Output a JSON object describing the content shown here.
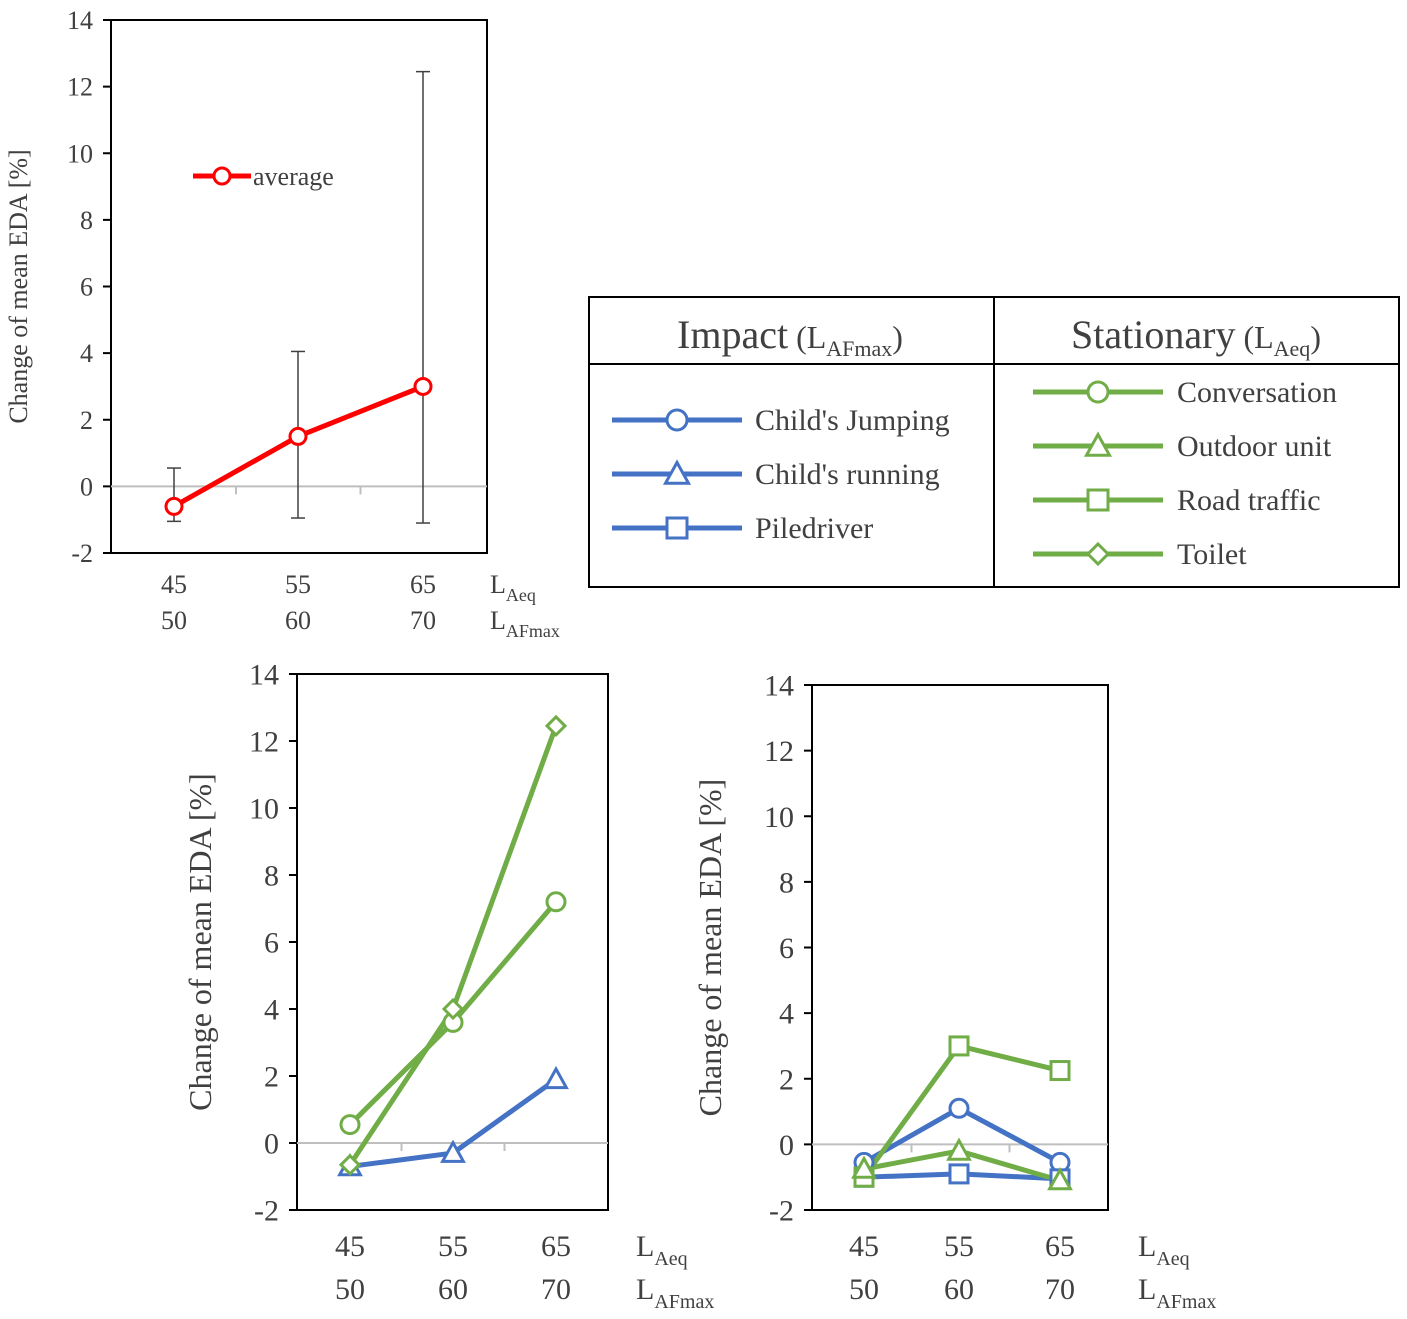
{
  "colors": {
    "average": "#ff0000",
    "impact": "#4472c4",
    "stationary": "#70ad47",
    "text": "#404040",
    "axis": "#000000",
    "zero_line": "#bfbfbf",
    "error_bar": "#404040"
  },
  "x_axis": {
    "laeq_label": "L",
    "laeq_sub": "Aeq",
    "lafmax_label": "L",
    "lafmax_sub": "AFmax",
    "laeq_ticks": [
      "45",
      "55",
      "65"
    ],
    "lafmax_ticks": [
      "50",
      "60",
      "70"
    ]
  },
  "legend_table": {
    "impact_header": "Impact",
    "impact_header_paren": "(L",
    "impact_header_sub": "AFmax",
    "impact_header_close": ")",
    "stationary_header": "Stationary",
    "stationary_header_paren": "(L",
    "stationary_header_sub": "Aeq",
    "stationary_header_close": ")",
    "impact_items": [
      {
        "label": "Child's Jumping",
        "marker": "circle"
      },
      {
        "label": "Child's running",
        "marker": "triangle"
      },
      {
        "label": "Piledriver",
        "marker": "square"
      }
    ],
    "stationary_items": [
      {
        "label": "Conversation",
        "marker": "circle"
      },
      {
        "label": "Outdoor unit",
        "marker": "triangle"
      },
      {
        "label": "Road traffic",
        "marker": "square"
      },
      {
        "label": "Toilet",
        "marker": "diamond"
      }
    ]
  },
  "chart_data": [
    {
      "type": "line",
      "id": "average",
      "title": "",
      "xlabel": "",
      "ylabel": "Change of mean EDA [%]",
      "ylim": [
        -2,
        14
      ],
      "yticks": [
        "-2",
        "0",
        "2",
        "4",
        "6",
        "8",
        "10",
        "12",
        "14"
      ],
      "categories": [
        "45",
        "55",
        "65"
      ],
      "legend": "average",
      "series": [
        {
          "name": "average",
          "values": [
            -0.6,
            1.5,
            3.0
          ],
          "marker": "circle",
          "color": "#ff0000",
          "error_high": [
            0.55,
            4.05,
            12.45
          ],
          "error_low": [
            -1.05,
            -0.95,
            -1.1
          ]
        }
      ]
    },
    {
      "type": "line",
      "id": "group-a",
      "title": "",
      "xlabel": "",
      "ylabel": "Change of mean EDA [%]",
      "ylim": [
        -2,
        14
      ],
      "yticks": [
        "-2",
        "0",
        "2",
        "4",
        "6",
        "8",
        "10",
        "12",
        "14"
      ],
      "categories": [
        "45",
        "55",
        "65"
      ],
      "series": [
        {
          "name": "Child's running",
          "values": [
            -0.7,
            -0.3,
            1.9
          ],
          "marker": "triangle",
          "color": "#4472c4"
        },
        {
          "name": "Conversation",
          "values": [
            0.55,
            3.6,
            7.2
          ],
          "marker": "circle",
          "color": "#70ad47"
        },
        {
          "name": "Toilet",
          "values": [
            -0.65,
            4.0,
            12.45
          ],
          "marker": "diamond",
          "color": "#70ad47"
        }
      ]
    },
    {
      "type": "line",
      "id": "group-b",
      "title": "",
      "xlabel": "",
      "ylabel": "Change of mean EDA [%]",
      "ylim": [
        -2,
        14
      ],
      "yticks": [
        "-2",
        "0",
        "2",
        "4",
        "6",
        "8",
        "10",
        "12",
        "14"
      ],
      "categories": [
        "45",
        "55",
        "65"
      ],
      "series": [
        {
          "name": "Child's Jumping",
          "values": [
            -0.55,
            1.1,
            -0.55
          ],
          "marker": "circle",
          "color": "#4472c4"
        },
        {
          "name": "Piledriver",
          "values": [
            -1.0,
            -0.9,
            -1.05
          ],
          "marker": "square",
          "color": "#4472c4"
        },
        {
          "name": "Road traffic",
          "values": [
            -1.0,
            3.0,
            2.25
          ],
          "marker": "square",
          "color": "#70ad47"
        },
        {
          "name": "Outdoor unit",
          "values": [
            -0.75,
            -0.2,
            -1.1
          ],
          "marker": "triangle",
          "color": "#70ad47"
        }
      ]
    }
  ]
}
